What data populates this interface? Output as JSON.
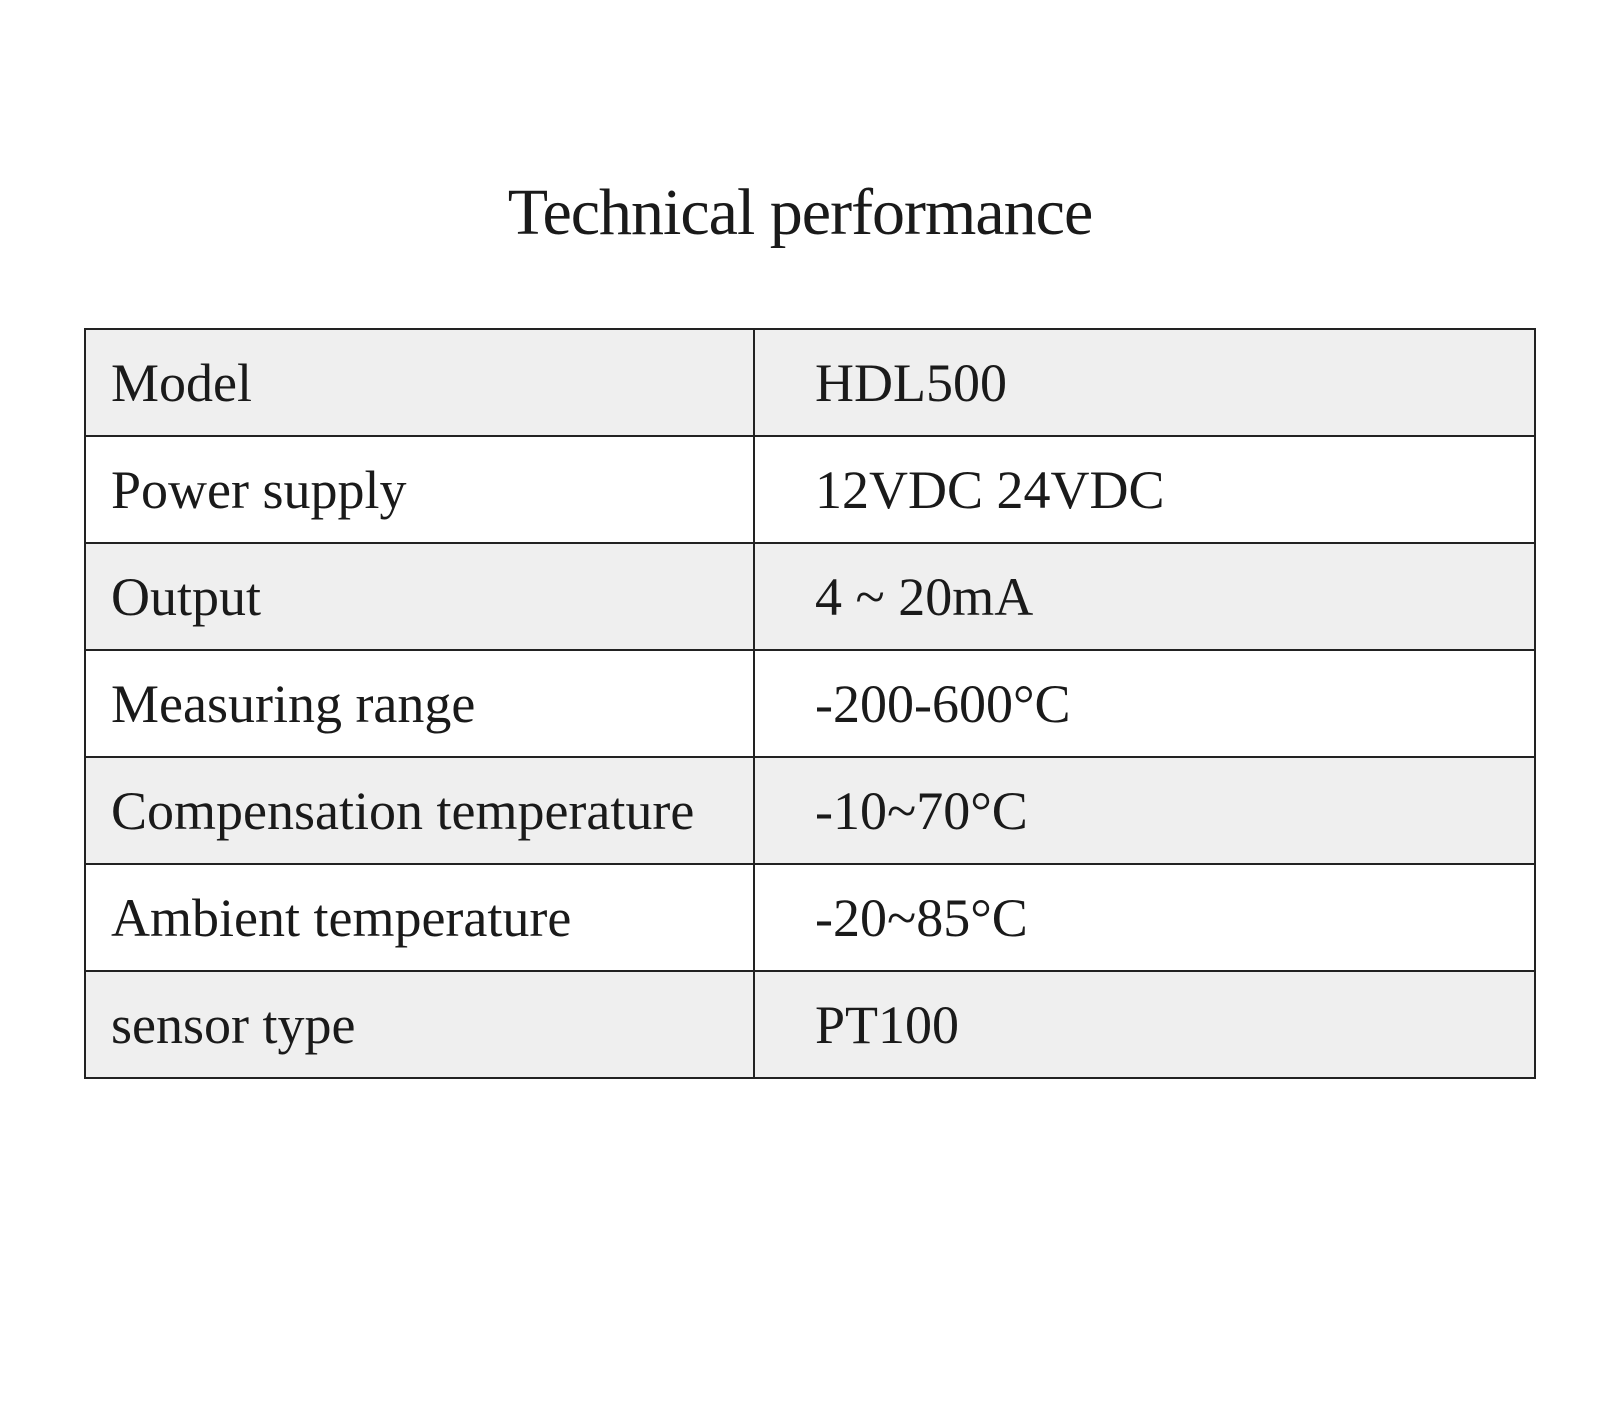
{
  "title": "Technical performance",
  "table": {
    "rows": [
      [
        "Model",
        "HDL500"
      ],
      [
        "Power supply",
        "12VDC 24VDC"
      ],
      [
        "Output",
        "4 ~ 20mA"
      ],
      [
        "Measuring range",
        "-200-600°C"
      ],
      [
        "Compensation temperature",
        "-10~70°C"
      ],
      [
        "Ambient temperature",
        "-20~85°C"
      ],
      [
        "sensor type",
        "PT100"
      ]
    ]
  }
}
